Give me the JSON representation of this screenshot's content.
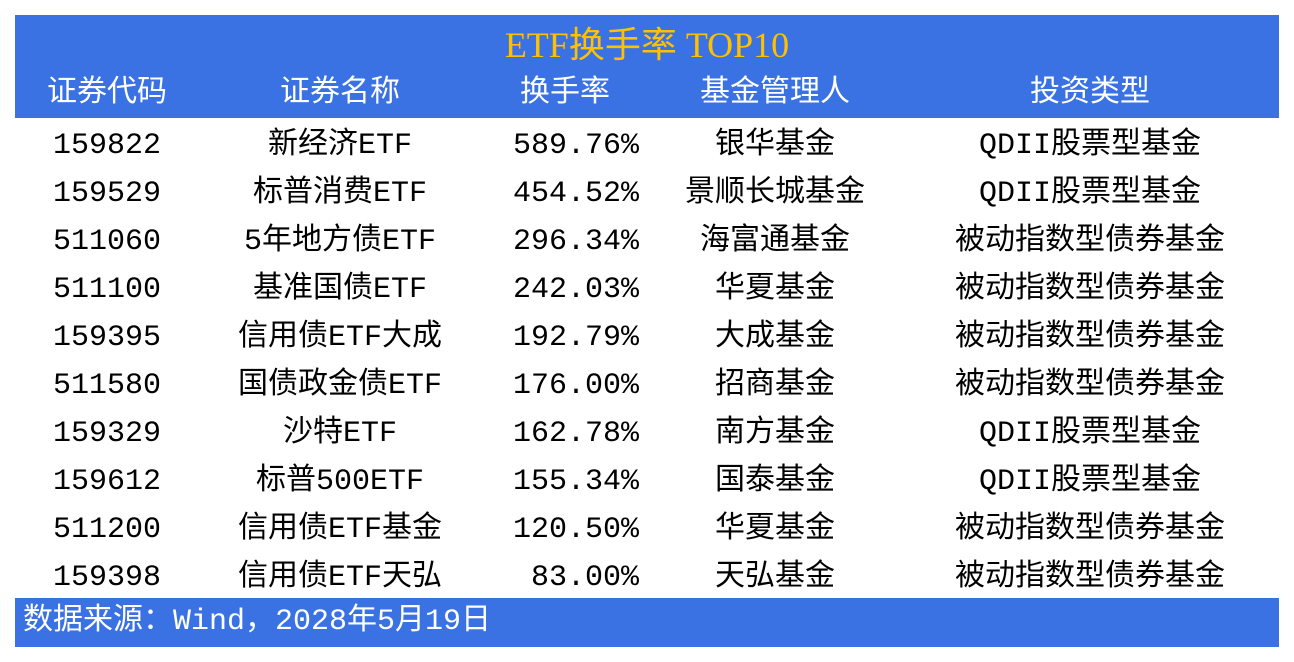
{
  "title": "ETF换手率 TOP10",
  "columns": [
    "证券代码",
    "证券名称",
    "换手率",
    "基金管理人",
    "投资类型"
  ],
  "rows": [
    [
      "159822",
      "新经济ETF",
      "589.76%",
      "银华基金",
      "QDII股票型基金"
    ],
    [
      "159529",
      "标普消费ETF",
      "454.52%",
      "景顺长城基金",
      "QDII股票型基金"
    ],
    [
      "511060",
      "5年地方债ETF",
      "296.34%",
      "海富通基金",
      "被动指数型债券基金"
    ],
    [
      "511100",
      "基准国债ETF",
      "242.03%",
      "华夏基金",
      "被动指数型债券基金"
    ],
    [
      "159395",
      "信用债ETF大成",
      "192.79%",
      "大成基金",
      "被动指数型债券基金"
    ],
    [
      "511580",
      "国债政金债ETF",
      "176.00%",
      "招商基金",
      "被动指数型债券基金"
    ],
    [
      "159329",
      "沙特ETF",
      "162.78%",
      "南方基金",
      "QDII股票型基金"
    ],
    [
      "159612",
      "标普500ETF",
      "155.34%",
      "国泰基金",
      "QDII股票型基金"
    ],
    [
      "511200",
      "信用债ETF基金",
      "120.50%",
      "华夏基金",
      "被动指数型债券基金"
    ],
    [
      "159398",
      "信用债ETF天弘",
      "83.00%",
      "天弘基金",
      "被动指数型债券基金"
    ]
  ],
  "source": "数据来源：Wind，2028年5月19日",
  "colors": {
    "band": "#3a72e3",
    "title": "#ffc000"
  }
}
